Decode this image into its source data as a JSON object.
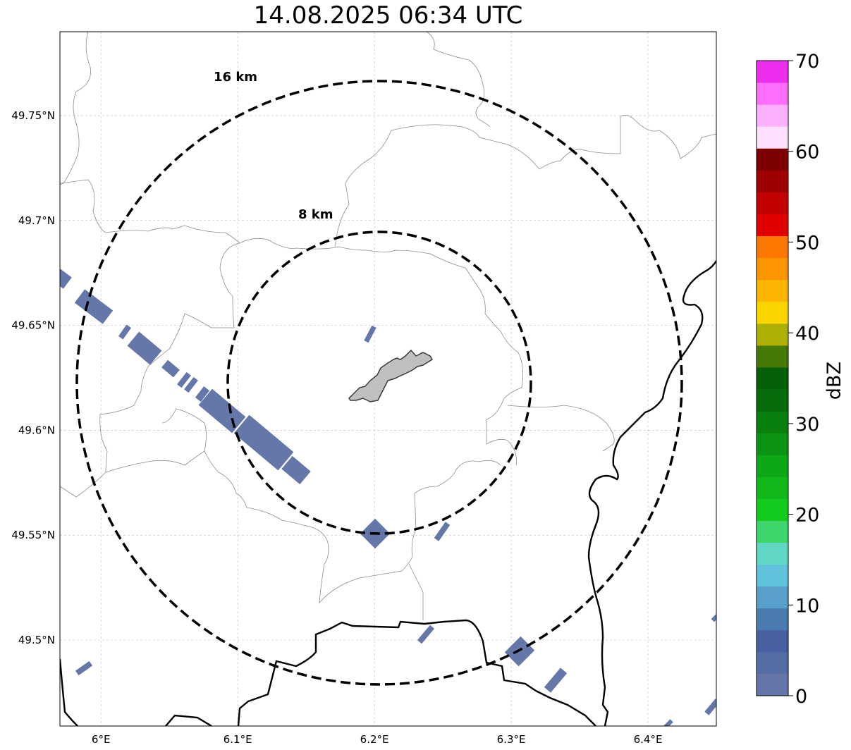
{
  "title": "14.08.2025 06:34 UTC",
  "map": {
    "lon_range": [
      5.97,
      6.45
    ],
    "lat_range": [
      49.459,
      49.79
    ],
    "lon_ticks": [
      6.0,
      6.1,
      6.2,
      6.3,
      6.4
    ],
    "lon_tick_labels": [
      "6°E",
      "6.1°E",
      "6.2°E",
      "6.3°E",
      "6.4°E"
    ],
    "lat_ticks": [
      49.5,
      49.55,
      49.6,
      49.65,
      49.7,
      49.75
    ],
    "lat_tick_labels": [
      "49.5°N",
      "49.55°N",
      "49.6°N",
      "49.65°N",
      "49.7°N",
      "49.75°N"
    ],
    "grid": true,
    "rings": [
      {
        "label": "8 km",
        "radius_km": 8
      },
      {
        "label": "16 km",
        "radius_km": 16
      }
    ],
    "colors": {
      "echo": "#6577a8",
      "city_fill": "#c0c0c0",
      "border": "#000000",
      "admin_line": "#8c8c8c"
    }
  },
  "colorbar": {
    "label": "dBZ",
    "range": [
      0,
      70
    ],
    "ticks": [
      0,
      10,
      20,
      30,
      40,
      50,
      60,
      70
    ],
    "tick_labels": [
      "0",
      "10",
      "20",
      "30",
      "40",
      "50",
      "60",
      "70"
    ],
    "colors": [
      "#6577a8",
      "#566ea5",
      "#4660a2",
      "#4b7bb1",
      "#58a0c9",
      "#62c1dc",
      "#60d7c3",
      "#3ed66c",
      "#13cb1c",
      "#10b919",
      "#0ea816",
      "#0b9411",
      "#097f0e",
      "#066b0b",
      "#046109",
      "#457905",
      "#adb005",
      "#fcd500",
      "#fcb500",
      "#fc9600",
      "#fc7800",
      "#e00000",
      "#c20000",
      "#9e0000",
      "#7c0000",
      "#fde0fd",
      "#fdb0fd",
      "#fd6efd",
      "#ee2eee"
    ]
  }
}
